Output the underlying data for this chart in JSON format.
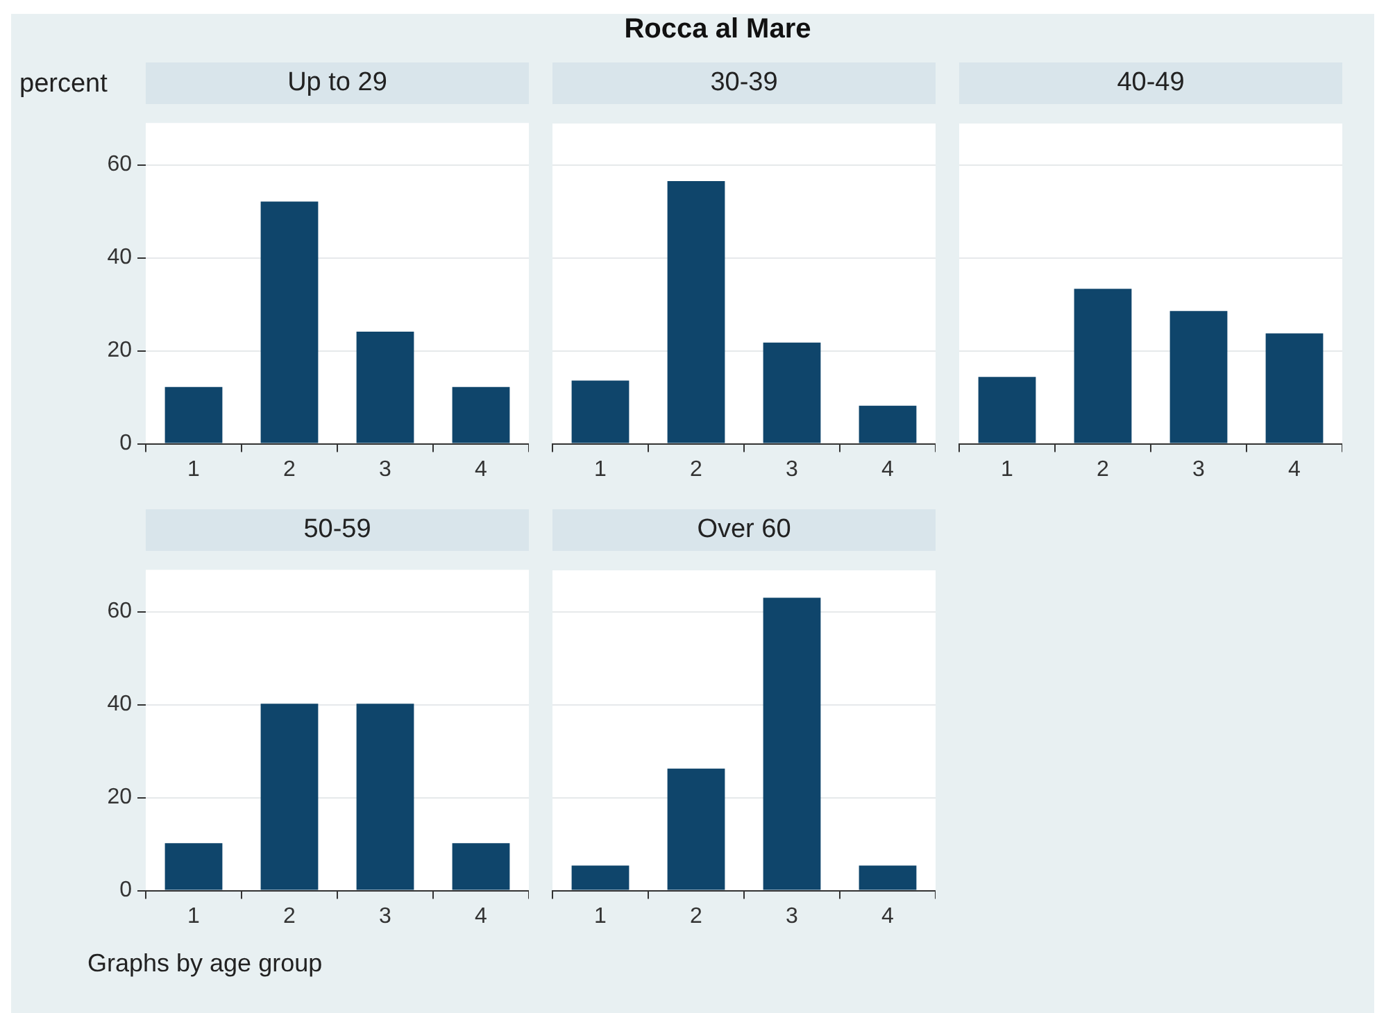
{
  "chart_data": [
    {
      "type": "bar",
      "title": "Up to 29",
      "ylabel": "percent",
      "annotations": [
        "Rocca al Mare",
        "Graphs by age group"
      ],
      "categories": [
        "1",
        "2",
        "3",
        "4"
      ],
      "values": [
        12.2,
        52.1,
        24.1,
        12.2
      ],
      "color": "#0f456b",
      "ylim": [
        0,
        69
      ],
      "yticks": [
        0,
        20,
        40,
        60
      ],
      "grid": "y"
    },
    {
      "type": "bar",
      "title": "30-39",
      "categories": [
        "1",
        "2",
        "3",
        "4"
      ],
      "values": [
        13.6,
        56.6,
        21.8,
        8.2
      ],
      "color": "#0f456b",
      "ylim": [
        0,
        69
      ],
      "yticks": [
        0,
        20,
        40,
        60
      ],
      "grid": "y",
      "tick_labels": "x"
    },
    {
      "type": "bar",
      "title": "40-49",
      "categories": [
        "1",
        "2",
        "3",
        "4"
      ],
      "values": [
        14.4,
        33.4,
        28.6,
        23.8
      ],
      "color": "#0f456b",
      "ylim": [
        0,
        69
      ],
      "yticks": [
        0,
        20,
        40,
        60
      ],
      "grid": "y",
      "tick_labels": "x"
    },
    {
      "type": "bar",
      "title": "50-59",
      "categories": [
        "1",
        "2",
        "3",
        "4"
      ],
      "values": [
        10.2,
        40.2,
        40.2,
        10.2
      ],
      "color": "#0f456b",
      "ylim": [
        0,
        69
      ],
      "yticks": [
        0,
        20,
        40,
        60
      ],
      "grid": "y"
    },
    {
      "type": "bar",
      "title": "Over 60",
      "categories": [
        "1",
        "2",
        "3",
        "4"
      ],
      "values": [
        5.4,
        26.3,
        63.1,
        5.4
      ],
      "color": "#0f456b",
      "ylim": [
        0,
        69
      ],
      "yticks": [
        0,
        20,
        40,
        60
      ],
      "grid": "y",
      "tick_labels": "x"
    }
  ]
}
